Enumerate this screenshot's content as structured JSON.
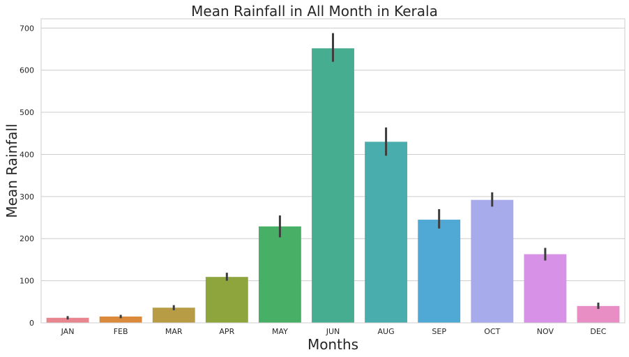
{
  "chart_data": {
    "type": "bar",
    "title": "Mean Rainfall in All Month in Kerala",
    "xlabel": "Months",
    "ylabel": "Mean Rainfall",
    "categories": [
      "JAN",
      "FEB",
      "MAR",
      "APR",
      "MAY",
      "JUN",
      "AUG",
      "SEP",
      "OCT",
      "NOV",
      "DEC"
    ],
    "values": [
      12,
      15,
      36,
      109,
      229,
      652,
      430,
      245,
      292,
      163,
      40
    ],
    "error_low": [
      8,
      11,
      30,
      100,
      203,
      620,
      397,
      224,
      276,
      148,
      33
    ],
    "error_high": [
      16,
      19,
      42,
      119,
      255,
      688,
      464,
      270,
      310,
      178,
      48
    ],
    "colors": [
      "#e8868f",
      "#db8a3c",
      "#b89c45",
      "#8ea53d",
      "#47b066",
      "#47ad91",
      "#49acad",
      "#50a9d5",
      "#a8abeb",
      "#d791e6",
      "#e88ec5"
    ],
    "ylim": [
      0,
      722
    ],
    "yticks": [
      0,
      100,
      200,
      300,
      400,
      500,
      600,
      700
    ],
    "grid": true,
    "legend": "none"
  }
}
